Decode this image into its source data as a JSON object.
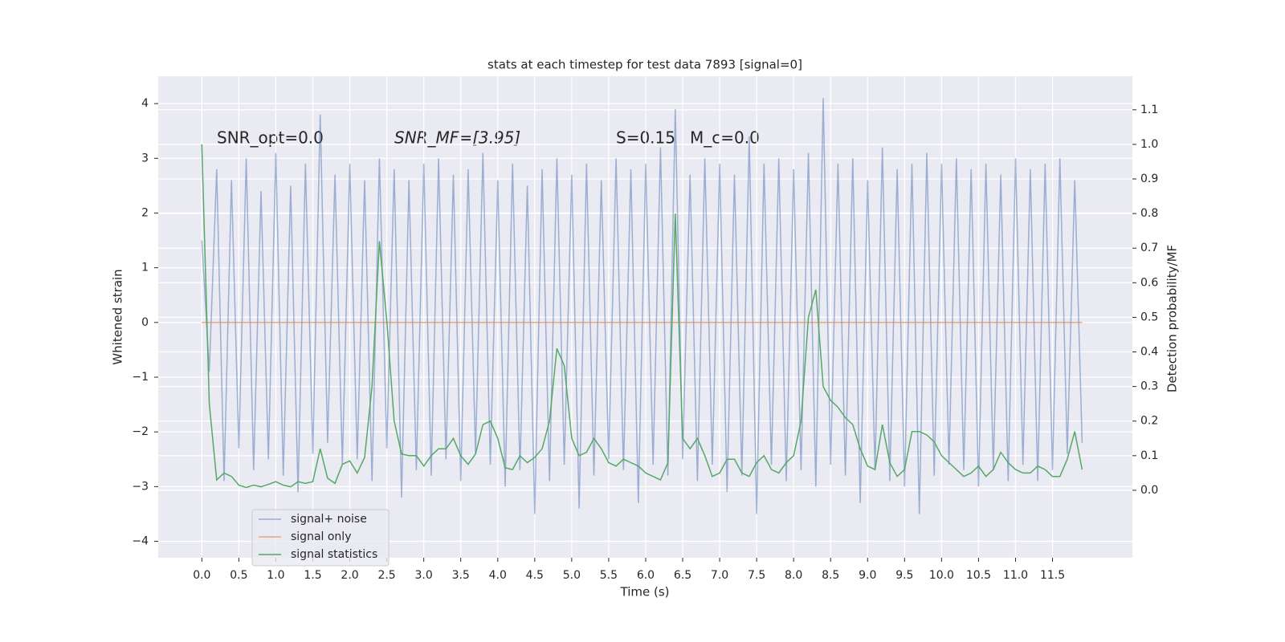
{
  "chart_data": {
    "type": "line",
    "title": "stats at each timestep for test data 7893 [signal=0]",
    "xlabel": "Time (s)",
    "ylabel": "Whitened strain",
    "y2label": "Detection probability/MF",
    "annotations": [
      "SNR_opt=0.0",
      "SNR_MF=[3.95]",
      "S=0.15",
      "M_c=0.0"
    ],
    "grid": true,
    "legend": "lower left",
    "xlim": [
      -0.59,
      12.58
    ],
    "ylim": [
      -4.3,
      4.5
    ],
    "y2lim": [
      -0.195,
      1.197
    ],
    "xticks": [
      {
        "value": 0,
        "label": "0.0"
      },
      {
        "value": 0.5,
        "label": "0.5"
      },
      {
        "value": 1,
        "label": "1.0"
      },
      {
        "value": 1.5,
        "label": "1.5"
      },
      {
        "value": 2,
        "label": "2.0"
      },
      {
        "value": 2.5,
        "label": "2.5"
      },
      {
        "value": 3,
        "label": "3.0"
      },
      {
        "value": 3.5,
        "label": "3.5"
      },
      {
        "value": 4,
        "label": "4.0"
      },
      {
        "value": 4.5,
        "label": "4.5"
      },
      {
        "value": 5,
        "label": "5.0"
      },
      {
        "value": 5.5,
        "label": "5.5"
      },
      {
        "value": 6,
        "label": "6.0"
      },
      {
        "value": 6.5,
        "label": "6.5"
      },
      {
        "value": 7,
        "label": "7.0"
      },
      {
        "value": 7.5,
        "label": "7.5"
      },
      {
        "value": 8,
        "label": "8.0"
      },
      {
        "value": 8.5,
        "label": "8.5"
      },
      {
        "value": 9,
        "label": "9.0"
      },
      {
        "value": 9.5,
        "label": "9.5"
      },
      {
        "value": 10,
        "label": "10.0"
      },
      {
        "value": 10.5,
        "label": "10.5"
      },
      {
        "value": 11,
        "label": "11.0"
      },
      {
        "value": 11.5,
        "label": "11.5"
      }
    ],
    "yticks": [
      {
        "value": -4,
        "label": "−4"
      },
      {
        "value": -3,
        "label": "−3"
      },
      {
        "value": -2,
        "label": "−2"
      },
      {
        "value": -1,
        "label": "−1"
      },
      0,
      1,
      2,
      3,
      4
    ],
    "y2ticks": [
      {
        "value": 0,
        "label": "0.0"
      },
      {
        "value": 0.1,
        "label": "0.1"
      },
      {
        "value": 0.2,
        "label": "0.2"
      },
      {
        "value": 0.3,
        "label": "0.3"
      },
      {
        "value": 0.4,
        "label": "0.4"
      },
      {
        "value": 0.5,
        "label": "0.5"
      },
      {
        "value": 0.6,
        "label": "0.6"
      },
      {
        "value": 0.7,
        "label": "0.7"
      },
      {
        "value": 0.8,
        "label": "0.8"
      },
      {
        "value": 0.9,
        "label": "0.9"
      },
      {
        "value": 1,
        "label": "1.0"
      },
      {
        "value": 1.1,
        "label": "1.1"
      }
    ],
    "x": [
      0,
      0.1,
      0.2,
      0.3,
      0.4,
      0.5,
      0.6,
      0.7,
      0.8,
      0.9,
      1,
      1.1,
      1.2,
      1.3,
      1.4,
      1.5,
      1.6,
      1.7,
      1.8,
      1.9,
      2,
      2.1,
      2.2,
      2.3,
      2.4,
      2.5,
      2.6,
      2.7,
      2.8,
      2.9,
      3,
      3.1,
      3.2,
      3.3,
      3.4,
      3.5,
      3.6,
      3.7,
      3.8,
      3.9,
      4,
      4.1,
      4.2,
      4.3,
      4.4,
      4.5,
      4.6,
      4.7,
      4.8,
      4.9,
      5,
      5.1,
      5.2,
      5.3,
      5.4,
      5.5,
      5.6,
      5.7,
      5.8,
      5.9,
      6,
      6.1,
      6.2,
      6.3,
      6.4,
      6.5,
      6.6,
      6.7,
      6.8,
      6.9,
      7,
      7.1,
      7.2,
      7.3,
      7.4,
      7.5,
      7.6,
      7.7,
      7.8,
      7.9,
      8,
      8.1,
      8.2,
      8.3,
      8.4,
      8.5,
      8.6,
      8.7,
      8.8,
      8.9,
      9,
      9.1,
      9.2,
      9.3,
      9.4,
      9.5,
      9.6,
      9.7,
      9.8,
      9.9,
      10,
      10.1,
      10.2,
      10.3,
      10.4,
      10.5,
      10.6,
      10.7,
      10.8,
      10.9,
      11,
      11.1,
      11.2,
      11.3,
      11.4,
      11.5,
      11.6,
      11.7,
      11.8,
      11.9
    ],
    "series": [
      {
        "name": "signal+ noise",
        "color": "#4c72b0",
        "opacity": 0.5,
        "values": [
          1.5,
          -0.9,
          2.8,
          -2.9,
          2.6,
          -2.3,
          3.0,
          -2.7,
          2.4,
          -2.5,
          3.1,
          -2.8,
          2.5,
          -3.1,
          2.9,
          -2.4,
          3.8,
          -2.2,
          2.7,
          -2.6,
          2.9,
          -2.5,
          2.6,
          -2.9,
          3.0,
          -2.3,
          2.8,
          -3.2,
          2.6,
          -2.7,
          2.9,
          -2.8,
          3.0,
          -2.5,
          2.7,
          -2.9,
          2.8,
          -2.4,
          3.1,
          -2.6,
          2.6,
          -3.0,
          2.9,
          -2.7,
          2.5,
          -3.5,
          2.8,
          -2.9,
          3.0,
          -2.6,
          2.7,
          -3.4,
          2.9,
          -2.8,
          2.6,
          -2.5,
          3.0,
          -2.7,
          2.8,
          -3.3,
          2.9,
          -2.6,
          3.2,
          -2.8,
          3.9,
          -2.5,
          2.7,
          -2.9,
          3.0,
          -2.6,
          2.9,
          -3.1,
          2.7,
          -2.8,
          3.4,
          -3.5,
          2.9,
          -2.6,
          3.0,
          -2.9,
          2.8,
          -2.7,
          3.1,
          -3.0,
          4.1,
          -2.6,
          2.9,
          -2.8,
          3.0,
          -3.3,
          2.6,
          -2.7,
          3.2,
          -2.9,
          2.8,
          -3.0,
          2.9,
          -3.5,
          3.1,
          -2.8,
          2.9,
          -2.6,
          3.0,
          -2.7,
          2.8,
          -3.0,
          2.9,
          -2.7,
          2.7,
          -2.9,
          3.0,
          -2.6,
          2.8,
          -2.9,
          2.9,
          -2.7,
          3.0,
          -2.4,
          2.6,
          -2.2
        ]
      },
      {
        "name": "signal only",
        "color": "#dd8452",
        "opacity": 0.7,
        "x": [
          0,
          11.9
        ],
        "values": [
          0,
          0
        ]
      },
      {
        "name": "signal statistics",
        "color": "#55a868",
        "opacity": 1,
        "axis": "y2",
        "values": [
          1.0,
          0.25,
          0.03,
          0.05,
          0.04,
          0.015,
          0.008,
          0.015,
          0.01,
          0.017,
          0.025,
          0.015,
          0.01,
          0.025,
          0.02,
          0.025,
          0.12,
          0.035,
          0.02,
          0.075,
          0.085,
          0.05,
          0.095,
          0.3,
          0.72,
          0.49,
          0.2,
          0.105,
          0.1,
          0.1,
          0.07,
          0.1,
          0.12,
          0.12,
          0.15,
          0.1,
          0.075,
          0.105,
          0.19,
          0.2,
          0.15,
          0.065,
          0.06,
          0.1,
          0.08,
          0.095,
          0.12,
          0.2,
          0.41,
          0.36,
          0.15,
          0.1,
          0.11,
          0.15,
          0.12,
          0.08,
          0.07,
          0.09,
          0.08,
          0.07,
          0.05,
          0.04,
          0.03,
          0.08,
          0.8,
          0.15,
          0.12,
          0.15,
          0.1,
          0.04,
          0.05,
          0.09,
          0.09,
          0.05,
          0.04,
          0.08,
          0.1,
          0.06,
          0.05,
          0.08,
          0.1,
          0.2,
          0.5,
          0.58,
          0.3,
          0.26,
          0.24,
          0.21,
          0.19,
          0.12,
          0.07,
          0.06,
          0.19,
          0.08,
          0.04,
          0.06,
          0.17,
          0.17,
          0.16,
          0.14,
          0.1,
          0.08,
          0.06,
          0.04,
          0.05,
          0.07,
          0.04,
          0.06,
          0.11,
          0.08,
          0.06,
          0.05,
          0.05,
          0.07,
          0.06,
          0.04,
          0.04,
          0.09,
          0.17,
          0.06
        ]
      }
    ]
  }
}
